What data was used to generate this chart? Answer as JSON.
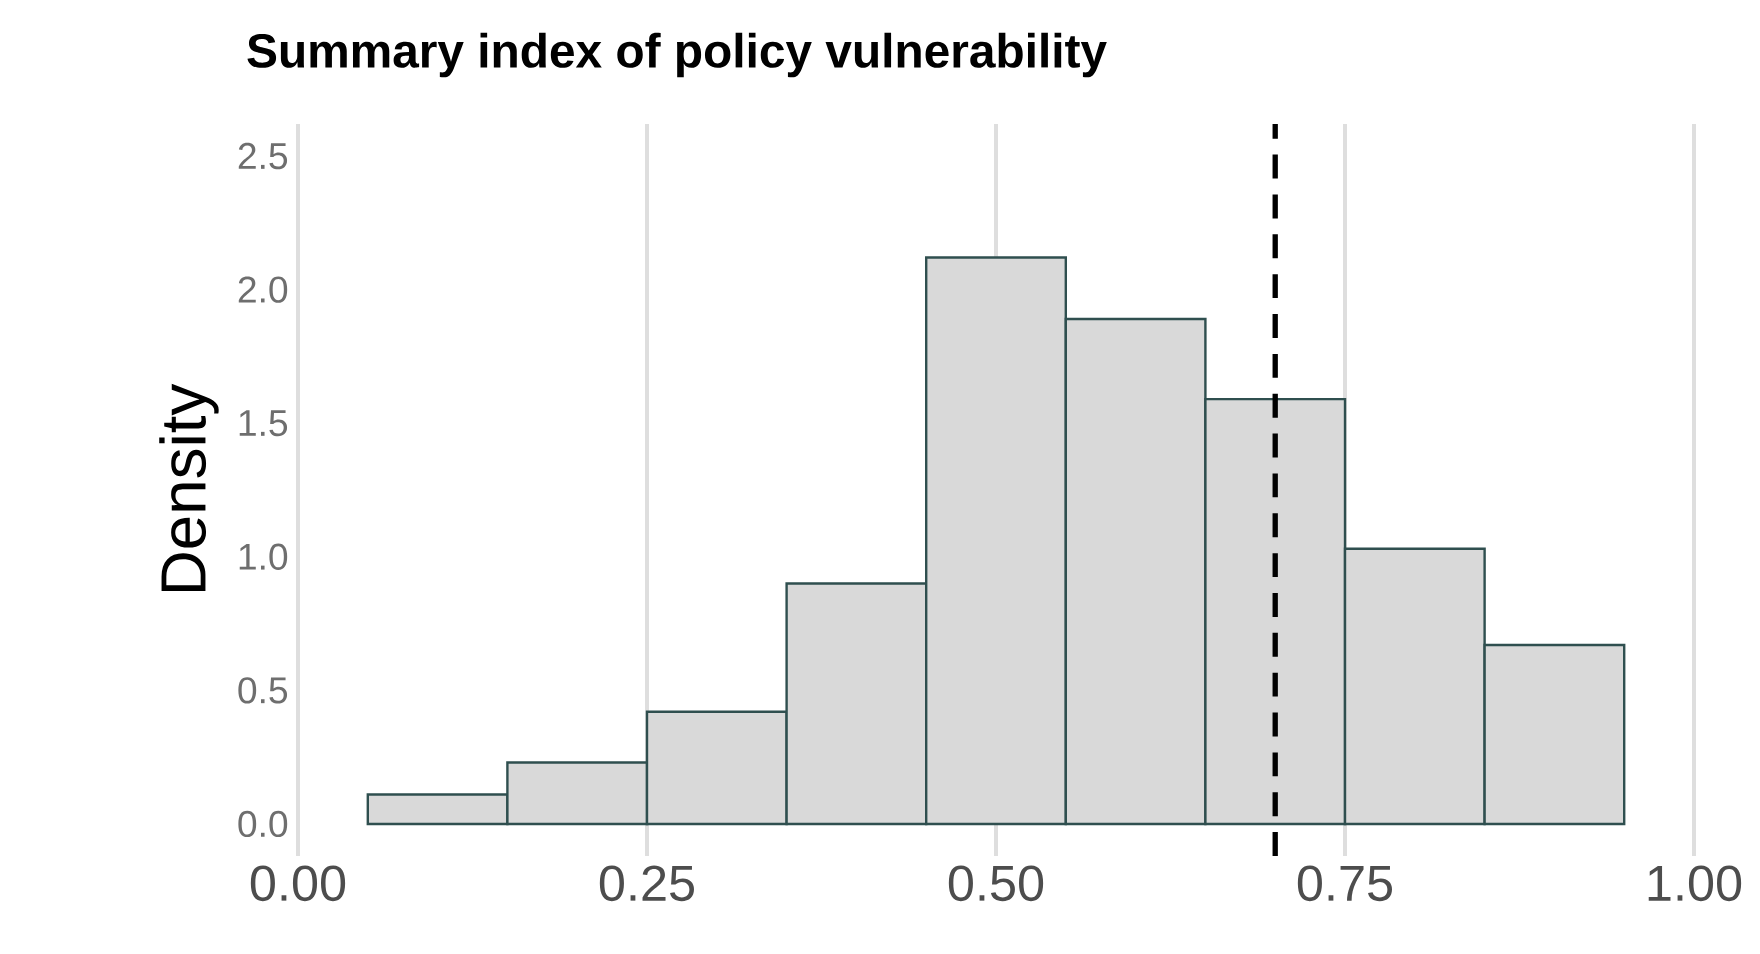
{
  "chart_data": {
    "type": "histogram",
    "title": "Summary index of policy vulnerability",
    "ylabel": "Density",
    "bins": [
      0.05,
      0.15,
      0.25,
      0.35,
      0.45,
      0.55,
      0.65,
      0.75,
      0.85,
      0.95
    ],
    "values": [
      0.11,
      0.23,
      0.42,
      0.9,
      2.12,
      1.89,
      1.59,
      1.03,
      0.67
    ],
    "color": "#d9d9d9",
    "xlim": [
      0,
      1
    ],
    "ylim": [
      -0.12,
      2.62
    ],
    "xticks": [
      {
        "value": 0,
        "label": "0.00"
      },
      0.25,
      {
        "value": 0.5,
        "label": "0.50"
      },
      0.75,
      {
        "value": 1,
        "label": "1.00"
      }
    ],
    "yticks": [
      {
        "value": 0,
        "label": "0.0"
      },
      0.5,
      {
        "value": 1,
        "label": "1.0"
      },
      1.5,
      {
        "value": 2,
        "label": "2.0"
      },
      2.5
    ],
    "grid": "x",
    "ref_lines": [
      {
        "axis": "x",
        "value": 0.7,
        "line_style": "dashed",
        "color": "#000000"
      }
    ]
  }
}
